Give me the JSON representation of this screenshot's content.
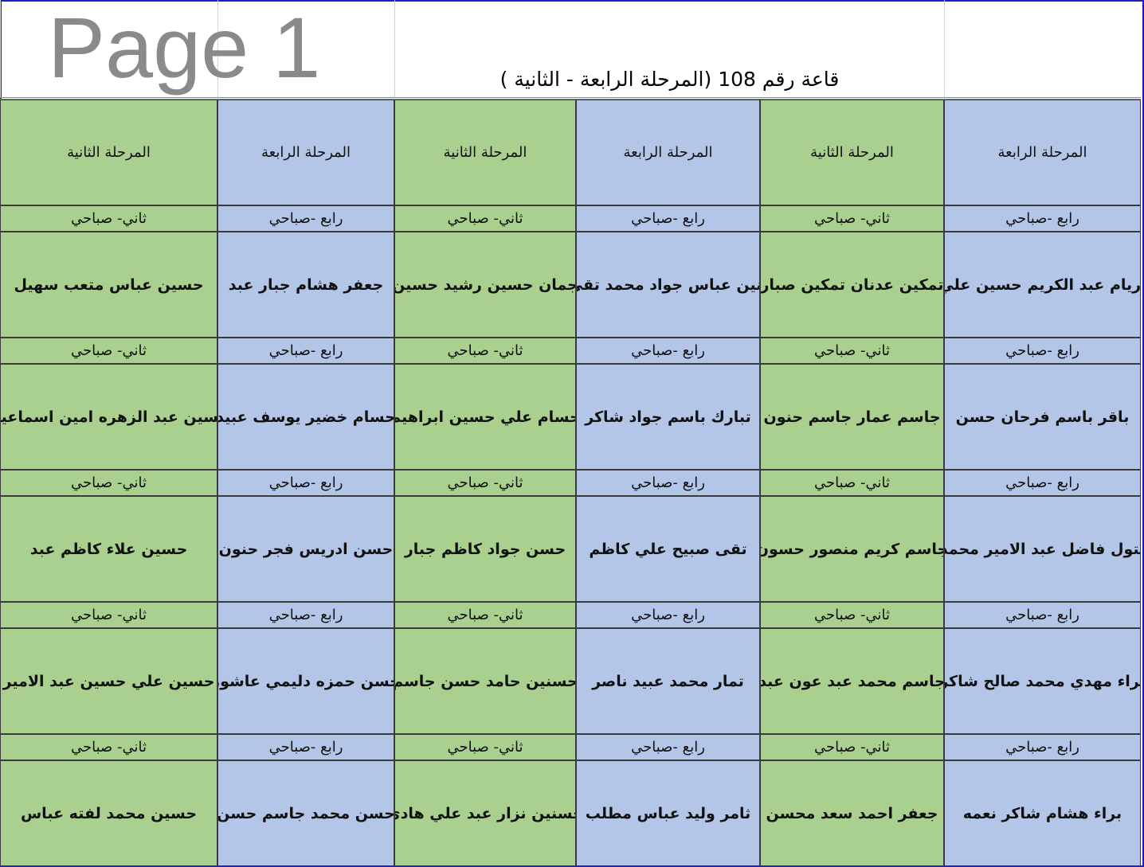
{
  "title": "قاعة رقم 108 (المرحلة الرابعة - الثانية )",
  "watermark": "Page 1",
  "colors": {
    "fourth_stage": "#b4c6e7",
    "second_stage": "#a9d08e"
  },
  "columns": [
    {
      "stage": "المرحلة الرابعة",
      "shift": "رابع -صباحي",
      "color": "blue"
    },
    {
      "stage": "المرحلة الثانية",
      "shift": "ثاني- صباحي",
      "color": "green"
    },
    {
      "stage": "المرحلة الرابعة",
      "shift": "رابع -صباحي",
      "color": "blue"
    },
    {
      "stage": "المرحلة الثانية",
      "shift": "ثاني- صباحي",
      "color": "green"
    },
    {
      "stage": "المرحلة الرابعة",
      "shift": "رابع -صباحي",
      "color": "blue"
    },
    {
      "stage": "المرحلة الثانية",
      "shift": "ثاني- صباحي",
      "color": "green"
    }
  ],
  "rows": [
    [
      "أريام عبد الكريم حسين علي",
      "تمكين عدنان تمكين صبار",
      "بنين عباس جواد محمد تقي",
      "جمان حسين رشيد حسين",
      "جعفر هشام جبار عبد",
      "حسين عباس متعب سهيل"
    ],
    [
      "باقر باسم فرحان حسن",
      "جاسم عمار جاسم حنون",
      "تبارك باسم جواد شاكر",
      "حسام علي حسين ابراهيم",
      "حسام خضير يوسف عبيد",
      "حسين عبد الزهره امين اسماعيل"
    ],
    [
      "بتول فاضل عبد الامير محمد",
      "جاسم كريم منصور حسون",
      "تقى صبيح علي كاظم",
      "حسن جواد كاظم جبار",
      "حسن ادريس فجر حنون",
      "حسين علاء كاظم عبد"
    ],
    [
      "براء مهدي محمد صالح شاكر",
      "جاسم محمد عبد عون عبد",
      "تمار محمد عبيد ناصر",
      "حسنين حامد حسن جاسم",
      "حسن حمزه دليمي عاشور",
      "حسين علي حسين عبد الامير"
    ],
    [
      "براء هشام شاكر نعمه",
      "جعفر احمد سعد محسن",
      "ثامر وليد عباس مطلب",
      "حسنين نزار عبد علي هادي",
      "حسن محمد جاسم حسن",
      "حسين محمد لفته عباس"
    ]
  ]
}
